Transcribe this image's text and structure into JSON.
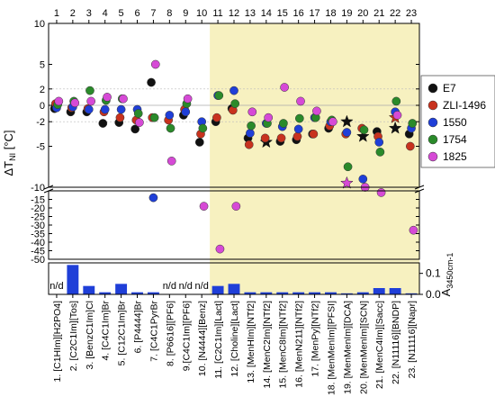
{
  "chart_data": {
    "type": "scatter",
    "top_axis_ticks": [
      "1",
      "2",
      "3",
      "4",
      "5",
      "6",
      "7",
      "8",
      "9",
      "10",
      "11",
      "12",
      "13",
      "14",
      "15",
      "16",
      "17",
      "18",
      "19",
      "20",
      "21",
      "22",
      "23"
    ],
    "categories": [
      "1. [C1HIm][H2PO4]",
      "2. [C2C1Im][Tos]",
      "3. [BenzC1Im]Cl",
      "4. [C4C1Im]Br",
      "5. [C12C1Im]Br",
      "6. [P4444]Br",
      "7. [C4C1PyrBr",
      "8. [P6616][PF6]",
      "9.[C4C1Im][PF6]",
      "10. [N4444][Benz]",
      "11. [C2C1Im][Lact]",
      "12. [Choline][Lact]",
      "13. [MenHIm][NTf2]",
      "14. [MenC2Im][NTf2]",
      "15. [MenC8Im][NTf2]",
      "16. [MenN211][NTf2]",
      "17. [MenPy][NTf2]",
      "18. [MenMenIm][PFSI]",
      "19. [MenMenIm][DCA]",
      "20. [MenMenIm][SCN]",
      "21. [MenC4Im][Sacc]",
      "22. [N11116][BNDP]",
      "23. [N11116][Napr]"
    ],
    "ylabel": "ΔT",
    "ylabel_sub": "NI",
    "ylabel_unit": " [°C]",
    "y_ticks_upper": [
      "10",
      "5",
      "2",
      "0",
      "-2",
      "-5",
      "-10"
    ],
    "y_ticks_lower": [
      "-15",
      "-20",
      "-25",
      "-30",
      "-35",
      "-40",
      "-45",
      "-50"
    ],
    "y2_label": "A",
    "y2_sub": "3450cm-1",
    "y2_ticks": [
      "0.0",
      "0.1"
    ],
    "nd_labels": [
      "n/d",
      "n/d",
      "n/d",
      "n/d"
    ],
    "highlight_from": 11,
    "colors": {
      "E7": "#111111",
      "ZLI-1496": "#c8321e",
      "1550": "#1f3fd8",
      "1754": "#2a8a2a",
      "1825": "#d64ad6",
      "highlight": "#f7f1c0",
      "bar": "#1f3fd8"
    },
    "legend": [
      "E7",
      "ZLI-1496",
      "1550",
      "1754",
      "1825"
    ],
    "series": [
      {
        "name": "E7",
        "values": [
          -0.4,
          -0.8,
          -0.8,
          -2.2,
          -2.1,
          -2.9,
          2.8,
          null,
          -1.2,
          -4.5,
          -2,
          -0.4,
          -4,
          -4.5,
          -4.4,
          -4.2,
          -3.5,
          -2.8,
          -2,
          -3.8,
          -3.2,
          -2.8,
          -3.5
        ],
        "star": [
          false,
          false,
          false,
          false,
          false,
          false,
          false,
          false,
          false,
          false,
          false,
          false,
          false,
          true,
          false,
          false,
          false,
          false,
          true,
          true,
          false,
          true,
          false
        ]
      },
      {
        "name": "ZLI-1496",
        "values": [
          0.2,
          -0.3,
          -0.4,
          -0.8,
          -1.5,
          -1.8,
          -1.5,
          -1.8,
          -0.5,
          -3.5,
          -1.5,
          -0.6,
          -4.8,
          -4,
          -4,
          -3.8,
          -3.5,
          -2.5,
          -3.5,
          -2.8,
          -3.8,
          -1.5,
          -5
        ],
        "star": [
          false,
          false,
          false,
          false,
          false,
          false,
          false,
          false,
          false,
          false,
          false,
          false,
          false,
          false,
          false,
          false,
          false,
          false,
          false,
          false,
          false,
          true,
          false
        ]
      },
      {
        "name": "1550",
        "values": [
          -0.3,
          -0.2,
          -0.5,
          -0.5,
          -0.5,
          -0.5,
          -14,
          -1.2,
          -0.8,
          -2,
          1.2,
          1.8,
          -3.4,
          -2.2,
          -2.6,
          -2.9,
          -1.5,
          -2,
          -3.3,
          -9,
          -4.5,
          -0.8,
          -2.8
        ]
      },
      {
        "name": "1754",
        "values": [
          0.1,
          0.5,
          1.8,
          0.6,
          0.8,
          -1,
          -1.5,
          -2.8,
          0.2,
          -2.8,
          1.2,
          0.2,
          -2.5,
          -2.2,
          -2.2,
          -1.6,
          -1.5,
          -1.8,
          -7.5,
          -3,
          -5.7,
          0.5,
          -2.2
        ]
      },
      {
        "name": "1825",
        "values": [
          0.5,
          0.3,
          0.5,
          1,
          0.8,
          -2.1,
          5,
          -6.8,
          0.8,
          -19,
          -44,
          -19,
          -0.8,
          -1.5,
          2.2,
          0.5,
          -0.7,
          -2,
          -9.5,
          -10,
          -11,
          -1.2,
          -33
        ],
        "star": [
          false,
          false,
          false,
          false,
          false,
          false,
          false,
          false,
          false,
          false,
          false,
          false,
          false,
          false,
          false,
          false,
          false,
          false,
          true,
          false,
          false,
          false,
          false
        ]
      }
    ],
    "absorbance_bars": [
      null,
      0.14,
      0.04,
      0.01,
      0.05,
      0.01,
      0.01,
      null,
      null,
      null,
      0.04,
      0.05,
      0.01,
      0.01,
      0.01,
      0.01,
      0.01,
      0.01,
      0.005,
      0.01,
      0.03,
      0.03,
      0.005
    ]
  }
}
